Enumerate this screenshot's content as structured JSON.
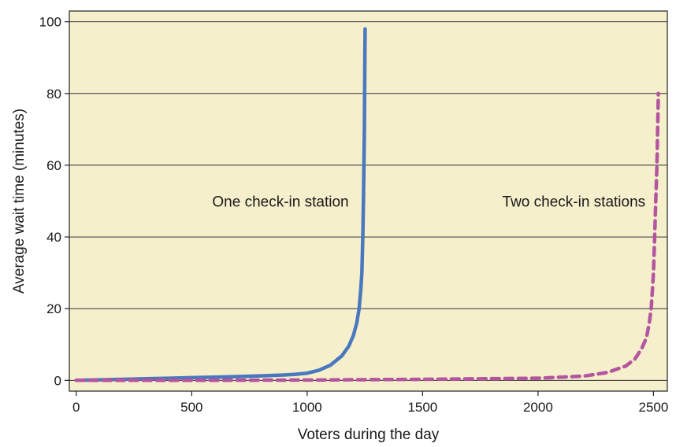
{
  "chart_data": {
    "type": "line",
    "xlabel": "Voters during the day",
    "ylabel": "Average wait time (minutes)",
    "xlim": [
      -30,
      2560
    ],
    "ylim": [
      -3,
      103
    ],
    "xticks": [
      0,
      500,
      1000,
      1500,
      2000,
      2500
    ],
    "yticks": [
      0,
      20,
      40,
      60,
      80,
      100
    ],
    "grid": "horizontal",
    "background": "#f5efcc",
    "annotations": [
      {
        "text": "One check-in station",
        "x": 1180,
        "y": 50
      },
      {
        "text": "Two check-in stations",
        "x": 2465,
        "y": 50
      }
    ],
    "series": [
      {
        "color": "#4a78bf",
        "style": "solid",
        "points": [
          [
            0,
            0
          ],
          [
            100,
            0.15
          ],
          [
            200,
            0.3
          ],
          [
            300,
            0.45
          ],
          [
            400,
            0.6
          ],
          [
            500,
            0.75
          ],
          [
            600,
            0.9
          ],
          [
            700,
            1.05
          ],
          [
            800,
            1.25
          ],
          [
            900,
            1.5
          ],
          [
            950,
            1.7
          ],
          [
            1000,
            2.0
          ],
          [
            1050,
            2.8
          ],
          [
            1100,
            4.2
          ],
          [
            1150,
            6.8
          ],
          [
            1180,
            9.5
          ],
          [
            1200,
            12.5
          ],
          [
            1215,
            16
          ],
          [
            1225,
            20
          ],
          [
            1232,
            25
          ],
          [
            1237,
            30
          ],
          [
            1241,
            40
          ],
          [
            1244,
            50
          ],
          [
            1246,
            60
          ],
          [
            1248,
            70
          ],
          [
            1249,
            80
          ],
          [
            1250,
            90
          ],
          [
            1251,
            98
          ]
        ]
      },
      {
        "color": "#b4559f",
        "style": "dashed",
        "points": [
          [
            0,
            0
          ],
          [
            500,
            0
          ],
          [
            1000,
            0.1
          ],
          [
            1500,
            0.3
          ],
          [
            2000,
            0.6
          ],
          [
            2200,
            1.2
          ],
          [
            2300,
            2.2
          ],
          [
            2380,
            4.0
          ],
          [
            2420,
            6.0
          ],
          [
            2450,
            9.0
          ],
          [
            2470,
            12.0
          ],
          [
            2482,
            16.0
          ],
          [
            2490,
            20.0
          ],
          [
            2495,
            25
          ],
          [
            2500,
            30
          ],
          [
            2505,
            40
          ],
          [
            2510,
            50
          ],
          [
            2515,
            60
          ],
          [
            2518,
            70
          ],
          [
            2521,
            80
          ]
        ]
      }
    ]
  }
}
